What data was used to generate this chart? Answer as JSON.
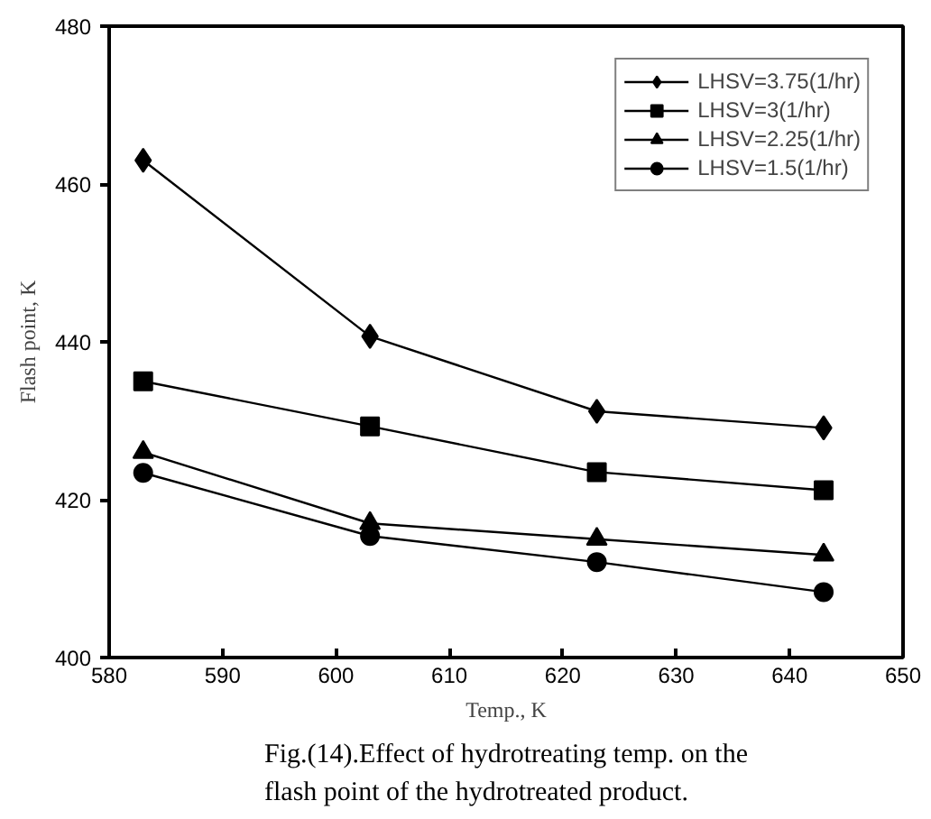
{
  "chart_data": {
    "type": "line",
    "xlabel": "Temp., K",
    "ylabel": "Flash point, K",
    "annotations": [
      "Fig.(14).Effect of hydrotreating temp. on the flash point of the hydrotreated product."
    ],
    "x": [
      583,
      603,
      623,
      643
    ],
    "series": [
      {
        "name": "LHSV=3.75(1/hr)",
        "color": "#000000",
        "marker": "diamond",
        "values": [
          463,
          440.7,
          431.2,
          429.1
        ]
      },
      {
        "name": "LHSV=3(1/hr)",
        "color": "#000000",
        "marker": "square",
        "values": [
          435,
          429.3,
          423.5,
          421.2
        ]
      },
      {
        "name": "LHSV=2.25(1/hr)",
        "color": "#000000",
        "marker": "triangle",
        "values": [
          426,
          417,
          415,
          413
        ]
      },
      {
        "name": "LHSV=1.5(1/hr)",
        "color": "#000000",
        "marker": "circle",
        "values": [
          423.4,
          415.4,
          412.1,
          408.3
        ]
      }
    ],
    "xlim": [
      580,
      650
    ],
    "xticks": [
      580,
      590,
      600,
      610,
      620,
      630,
      640,
      650
    ],
    "ylim": [
      400,
      480
    ],
    "yticks": [
      400,
      420,
      440,
      460,
      480
    ],
    "grid": false,
    "legend": "top right",
    "line_style": "solid"
  }
}
